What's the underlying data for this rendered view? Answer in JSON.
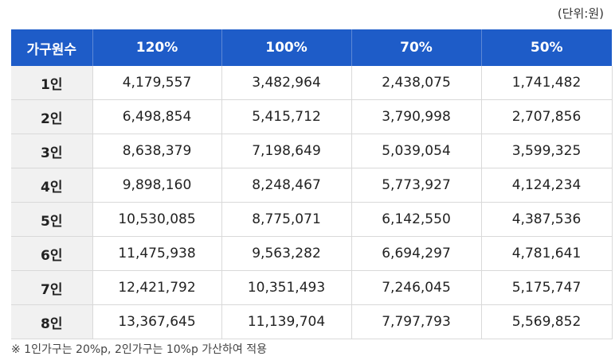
{
  "unit_label": "(단위:원)",
  "table": {
    "headers": [
      "가구원수",
      "120%",
      "100%",
      "70%",
      "50%"
    ],
    "rows": [
      [
        "1인",
        "4,179,557",
        "3,482,964",
        "2,438,075",
        "1,741,482"
      ],
      [
        "2인",
        "6,498,854",
        "5,415,712",
        "3,790,998",
        "2,707,856"
      ],
      [
        "3인",
        "8,638,379",
        "7,198,649",
        "5,039,054",
        "3,599,325"
      ],
      [
        "4인",
        "9,898,160",
        "8,248,467",
        "5,773,927",
        "4,124,234"
      ],
      [
        "5인",
        "10,530,085",
        "8,775,071",
        "6,142,550",
        "4,387,536"
      ],
      [
        "6인",
        "11,475,938",
        "9,563,282",
        "6,694,297",
        "4,781,641"
      ],
      [
        "7인",
        "12,421,792",
        "10,351,493",
        "7,246,045",
        "5,175,747"
      ],
      [
        "8인",
        "13,367,645",
        "11,139,704",
        "7,797,793",
        "5,569,852"
      ]
    ]
  },
  "footnote": "※ 1인가구는 20%p, 2인가구는 10%p 가산하여 적용",
  "colors": {
    "header_bg": "#1e5cc8",
    "header_text": "#ffffff",
    "row_head_bg": "#f1f1f1",
    "grid_line": "#d9d9d9"
  }
}
